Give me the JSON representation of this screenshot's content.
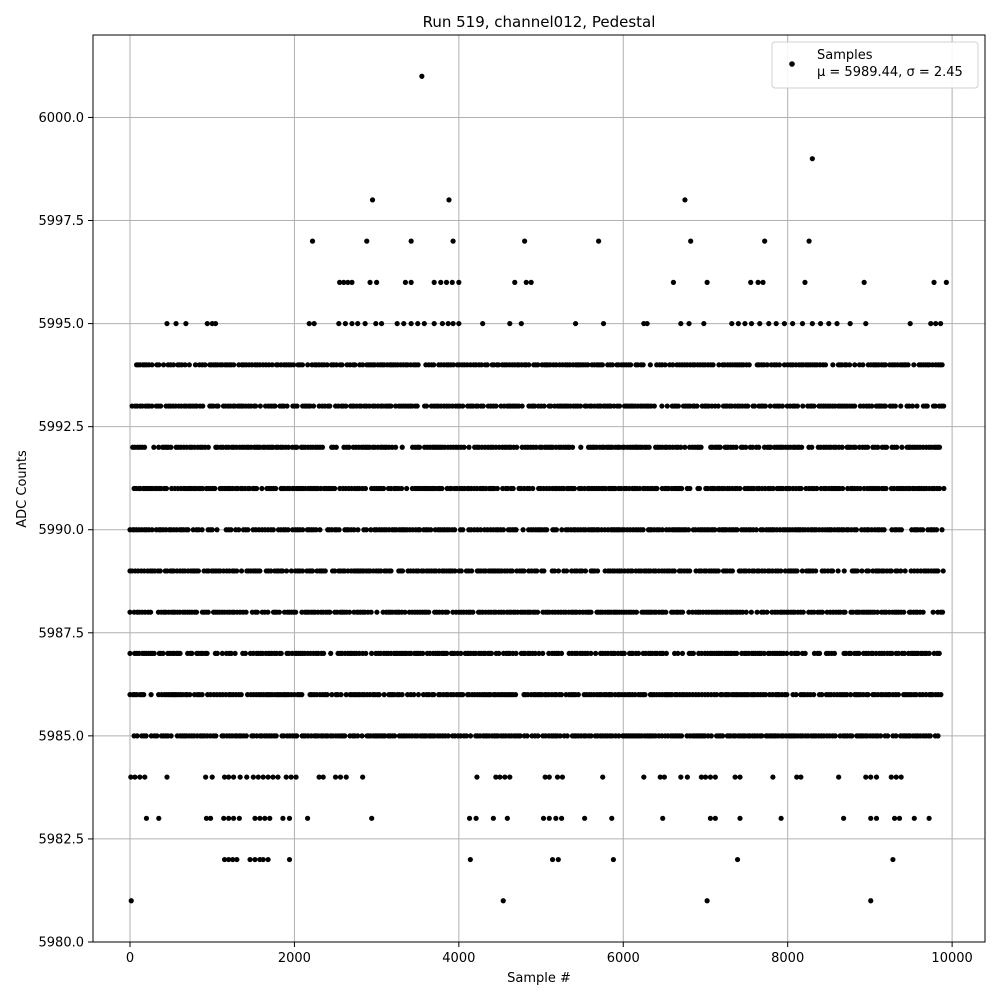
{
  "chart_data": {
    "type": "scatter",
    "title": "Run 519, channel012, Pedestal",
    "xlabel": "Sample #",
    "ylabel": "ADC Counts",
    "xlim": [
      -450,
      10400
    ],
    "ylim": [
      5980.0,
      6002.0
    ],
    "x_ticks": [
      0,
      2000,
      4000,
      6000,
      8000,
      10000
    ],
    "x_tick_labels": [
      "0",
      "2000",
      "4000",
      "6000",
      "8000",
      "10000"
    ],
    "y_ticks": [
      5980.0,
      5982.5,
      5985.0,
      5987.5,
      5990.0,
      5992.5,
      5995.0,
      5997.5,
      6000.0
    ],
    "y_tick_labels": [
      "5980.0",
      "5982.5",
      "5985.0",
      "5987.5",
      "5990.0",
      "5992.5",
      "5995.0",
      "5997.5",
      "6000.0"
    ],
    "grid": true,
    "legend": {
      "placement": "upper-right",
      "entry_name": "Samples",
      "stats_line": "μ = 5989.44, σ = 2.45"
    },
    "marker_color": "#000000",
    "series": [
      {
        "name": "Samples",
        "level_ranges": [
          {
            "y": 5986,
            "ranges": [
              [
                0,
                9900
              ]
            ]
          },
          {
            "y": 5987,
            "ranges": [
              [
                0,
                9900
              ]
            ]
          },
          {
            "y": 5988,
            "ranges": [
              [
                0,
                9900
              ]
            ]
          },
          {
            "y": 5989,
            "ranges": [
              [
                0,
                9900
              ]
            ]
          },
          {
            "y": 5990,
            "ranges": [
              [
                0,
                9900
              ]
            ]
          },
          {
            "y": 5991,
            "ranges": [
              [
                50,
                9900
              ]
            ]
          },
          {
            "y": 5992,
            "ranges": [
              [
                0,
                9900
              ]
            ]
          },
          {
            "y": 5993,
            "ranges": [
              [
                0,
                9900
              ]
            ]
          },
          {
            "y": 5994,
            "ranges": [
              [
                80,
                9900
              ]
            ]
          },
          {
            "y": 5985,
            "ranges": [
              [
                50,
                9850
              ]
            ]
          }
        ],
        "points": [
          [
            3550,
            6001
          ],
          [
            8300,
            5999
          ],
          [
            2950,
            5998
          ],
          [
            3880,
            5998
          ],
          [
            6750,
            5998
          ],
          [
            2220,
            5997
          ],
          [
            2880,
            5997
          ],
          [
            3420,
            5997
          ],
          [
            3930,
            5997
          ],
          [
            4800,
            5997
          ],
          [
            5700,
            5997
          ],
          [
            6820,
            5997
          ],
          [
            7720,
            5997
          ],
          [
            8260,
            5997
          ],
          [
            2550,
            5996
          ],
          [
            2600,
            5996
          ],
          [
            2650,
            5996
          ],
          [
            2700,
            5996
          ],
          [
            2920,
            5996
          ],
          [
            3000,
            5996
          ],
          [
            3350,
            5996
          ],
          [
            3420,
            5996
          ],
          [
            3700,
            5996
          ],
          [
            3780,
            5996
          ],
          [
            3850,
            5996
          ],
          [
            3920,
            5996
          ],
          [
            4000,
            5996
          ],
          [
            4680,
            5996
          ],
          [
            4820,
            5996
          ],
          [
            4880,
            5996
          ],
          [
            6610,
            5996
          ],
          [
            7020,
            5996
          ],
          [
            7550,
            5996
          ],
          [
            7640,
            5996
          ],
          [
            7700,
            5996
          ],
          [
            8210,
            5996
          ],
          [
            8930,
            5996
          ],
          [
            9780,
            5996
          ],
          [
            9930,
            5996
          ],
          [
            450,
            5995
          ],
          [
            560,
            5995
          ],
          [
            680,
            5995
          ],
          [
            940,
            5995
          ],
          [
            1000,
            5995
          ],
          [
            1040,
            5995
          ],
          [
            2180,
            5995
          ],
          [
            2240,
            5995
          ],
          [
            2540,
            5995
          ],
          [
            2620,
            5995
          ],
          [
            2700,
            5995
          ],
          [
            2770,
            5995
          ],
          [
            2860,
            5995
          ],
          [
            2990,
            5995
          ],
          [
            3060,
            5995
          ],
          [
            3250,
            5995
          ],
          [
            3330,
            5995
          ],
          [
            3420,
            5995
          ],
          [
            3500,
            5995
          ],
          [
            3580,
            5995
          ],
          [
            3700,
            5995
          ],
          [
            3800,
            5995
          ],
          [
            3870,
            5995
          ],
          [
            3930,
            5995
          ],
          [
            4000,
            5995
          ],
          [
            4290,
            5995
          ],
          [
            4620,
            5995
          ],
          [
            4760,
            5995
          ],
          [
            5420,
            5995
          ],
          [
            5760,
            5995
          ],
          [
            6250,
            5995
          ],
          [
            6290,
            5995
          ],
          [
            6700,
            5995
          ],
          [
            6800,
            5995
          ],
          [
            6980,
            5995
          ],
          [
            7320,
            5995
          ],
          [
            7400,
            5995
          ],
          [
            7480,
            5995
          ],
          [
            7560,
            5995
          ],
          [
            7660,
            5995
          ],
          [
            7770,
            5995
          ],
          [
            7860,
            5995
          ],
          [
            7960,
            5995
          ],
          [
            8060,
            5995
          ],
          [
            8180,
            5995
          ],
          [
            8300,
            5995
          ],
          [
            8400,
            5995
          ],
          [
            8500,
            5995
          ],
          [
            8600,
            5995
          ],
          [
            8760,
            5995
          ],
          [
            8950,
            5995
          ],
          [
            9490,
            5995
          ],
          [
            9740,
            5995
          ],
          [
            9800,
            5995
          ],
          [
            9860,
            5995
          ],
          [
            10,
            5984
          ],
          [
            60,
            5984
          ],
          [
            120,
            5984
          ],
          [
            180,
            5984
          ],
          [
            450,
            5984
          ],
          [
            920,
            5984
          ],
          [
            1000,
            5984
          ],
          [
            1150,
            5984
          ],
          [
            1200,
            5984
          ],
          [
            1260,
            5984
          ],
          [
            1340,
            5984
          ],
          [
            1420,
            5984
          ],
          [
            1500,
            5984
          ],
          [
            1560,
            5984
          ],
          [
            1620,
            5984
          ],
          [
            1680,
            5984
          ],
          [
            1740,
            5984
          ],
          [
            1800,
            5984
          ],
          [
            1900,
            5984
          ],
          [
            1960,
            5984
          ],
          [
            2020,
            5984
          ],
          [
            2300,
            5984
          ],
          [
            2350,
            5984
          ],
          [
            2500,
            5984
          ],
          [
            2560,
            5984
          ],
          [
            2630,
            5984
          ],
          [
            2830,
            5984
          ],
          [
            4220,
            5984
          ],
          [
            4450,
            5984
          ],
          [
            4500,
            5984
          ],
          [
            4560,
            5984
          ],
          [
            4620,
            5984
          ],
          [
            5050,
            5984
          ],
          [
            5100,
            5984
          ],
          [
            5200,
            5984
          ],
          [
            5260,
            5984
          ],
          [
            5750,
            5984
          ],
          [
            6250,
            5984
          ],
          [
            6450,
            5984
          ],
          [
            6500,
            5984
          ],
          [
            6700,
            5984
          ],
          [
            6780,
            5984
          ],
          [
            6950,
            5984
          ],
          [
            7000,
            5984
          ],
          [
            7060,
            5984
          ],
          [
            7120,
            5984
          ],
          [
            7360,
            5984
          ],
          [
            7420,
            5984
          ],
          [
            7820,
            5984
          ],
          [
            8110,
            5984
          ],
          [
            8160,
            5984
          ],
          [
            8620,
            5984
          ],
          [
            8950,
            5984
          ],
          [
            9010,
            5984
          ],
          [
            9080,
            5984
          ],
          [
            9260,
            5984
          ],
          [
            9320,
            5984
          ],
          [
            9380,
            5984
          ],
          [
            200,
            5983
          ],
          [
            350,
            5983
          ],
          [
            930,
            5983
          ],
          [
            980,
            5983
          ],
          [
            1140,
            5983
          ],
          [
            1200,
            5983
          ],
          [
            1260,
            5983
          ],
          [
            1330,
            5983
          ],
          [
            1520,
            5983
          ],
          [
            1580,
            5983
          ],
          [
            1640,
            5983
          ],
          [
            1700,
            5983
          ],
          [
            1860,
            5983
          ],
          [
            1940,
            5983
          ],
          [
            2160,
            5983
          ],
          [
            2940,
            5983
          ],
          [
            4130,
            5983
          ],
          [
            4210,
            5983
          ],
          [
            4420,
            5983
          ],
          [
            4590,
            5983
          ],
          [
            5030,
            5983
          ],
          [
            5100,
            5983
          ],
          [
            5180,
            5983
          ],
          [
            5250,
            5983
          ],
          [
            5530,
            5983
          ],
          [
            5860,
            5983
          ],
          [
            6480,
            5983
          ],
          [
            7060,
            5983
          ],
          [
            7120,
            5983
          ],
          [
            7420,
            5983
          ],
          [
            7920,
            5983
          ],
          [
            8680,
            5983
          ],
          [
            9010,
            5983
          ],
          [
            9080,
            5983
          ],
          [
            9300,
            5983
          ],
          [
            9360,
            5983
          ],
          [
            9540,
            5983
          ],
          [
            9720,
            5983
          ],
          [
            1150,
            5982
          ],
          [
            1200,
            5982
          ],
          [
            1250,
            5982
          ],
          [
            1300,
            5982
          ],
          [
            1460,
            5982
          ],
          [
            1520,
            5982
          ],
          [
            1580,
            5982
          ],
          [
            1620,
            5982
          ],
          [
            1680,
            5982
          ],
          [
            1940,
            5982
          ],
          [
            4140,
            5982
          ],
          [
            5140,
            5982
          ],
          [
            5210,
            5982
          ],
          [
            5880,
            5982
          ],
          [
            7390,
            5982
          ],
          [
            9280,
            5982
          ],
          [
            15,
            5981
          ],
          [
            4540,
            5981
          ],
          [
            7020,
            5981
          ],
          [
            9010,
            5981
          ]
        ]
      }
    ]
  }
}
